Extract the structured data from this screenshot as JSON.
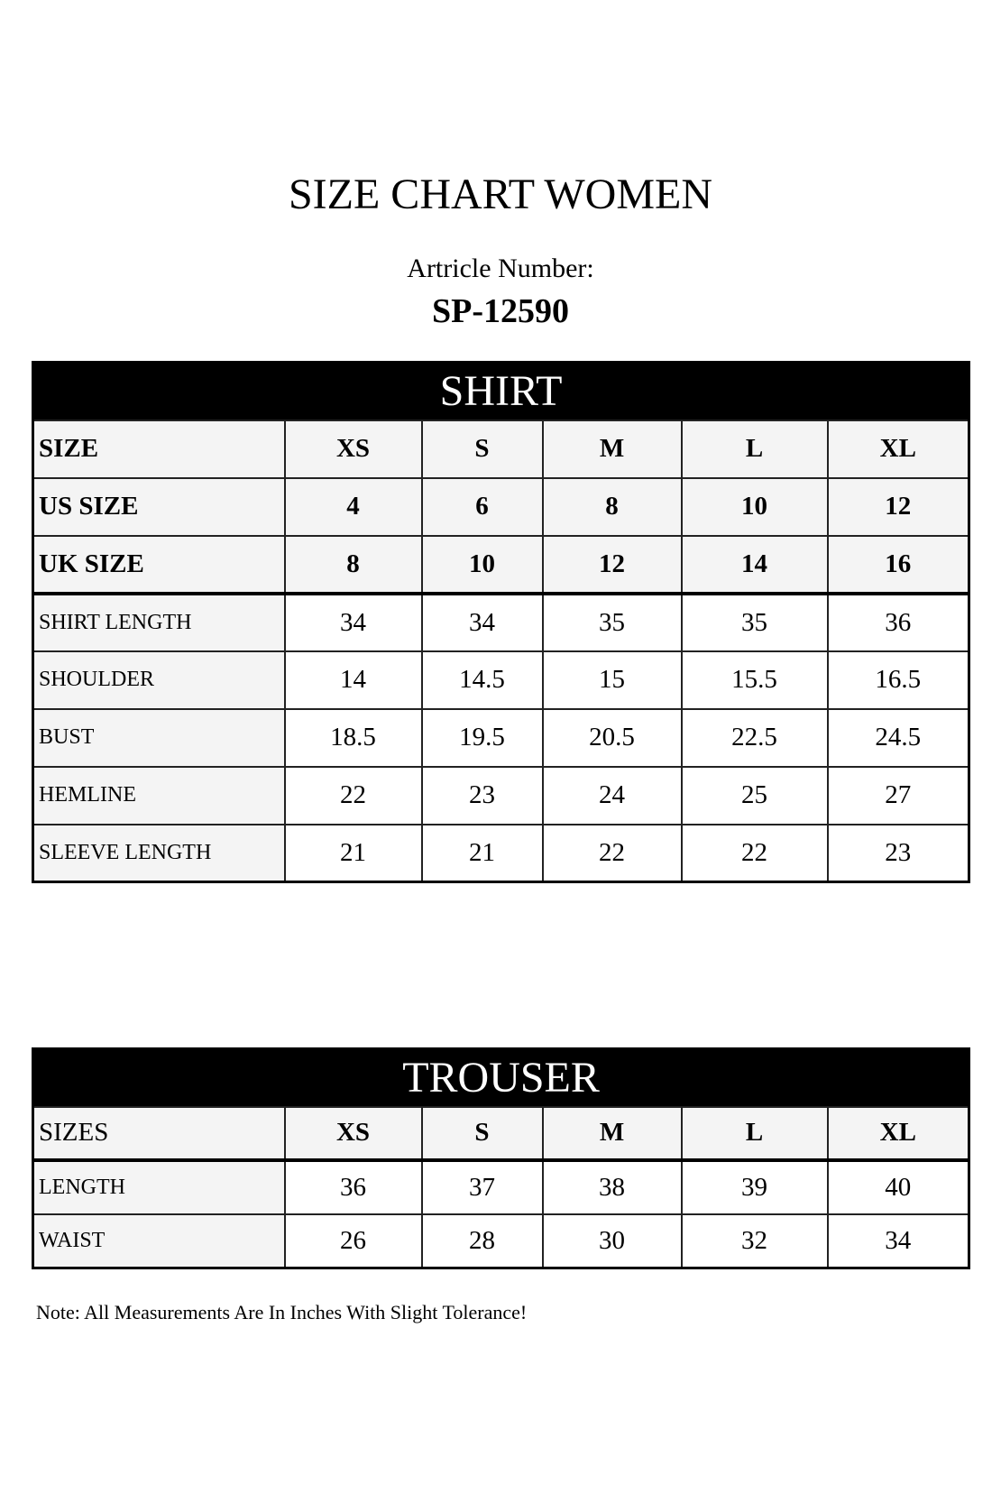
{
  "title": "SIZE CHART WOMEN",
  "article_label": "Artricle Number:",
  "article_number": "SP-12590",
  "shirt": {
    "heading": "SHIRT",
    "header_rows": [
      {
        "label": "SIZE",
        "values": [
          "XS",
          "S",
          "M",
          "L",
          "XL"
        ]
      },
      {
        "label": "US SIZE",
        "values": [
          "4",
          "6",
          "8",
          "10",
          "12"
        ]
      },
      {
        "label": "UK SIZE",
        "values": [
          "8",
          "10",
          "12",
          "14",
          "16"
        ]
      }
    ],
    "rows": [
      {
        "label": "SHIRT LENGTH",
        "values": [
          "34",
          "34",
          "35",
          "35",
          "36"
        ]
      },
      {
        "label": "SHOULDER",
        "values": [
          "14",
          "14.5",
          "15",
          "15.5",
          "16.5"
        ]
      },
      {
        "label": "BUST",
        "values": [
          "18.5",
          "19.5",
          "20.5",
          "22.5",
          "24.5"
        ]
      },
      {
        "label": "HEMLINE",
        "values": [
          "22",
          "23",
          "24",
          "25",
          "27"
        ]
      },
      {
        "label": "SLEEVE LENGTH",
        "values": [
          "21",
          "21",
          "22",
          "22",
          "23"
        ]
      }
    ]
  },
  "trouser": {
    "heading": "TROUSER",
    "header": {
      "label": "SIZES",
      "values": [
        "XS",
        "S",
        "M",
        "L",
        "XL"
      ]
    },
    "rows": [
      {
        "label": "LENGTH",
        "values": [
          "36",
          "37",
          "38",
          "39",
          "40"
        ]
      },
      {
        "label": "WAIST",
        "values": [
          "26",
          "28",
          "30",
          "32",
          "34"
        ]
      }
    ]
  },
  "note": "Note: All Measurements Are In Inches With Slight Tolerance!"
}
